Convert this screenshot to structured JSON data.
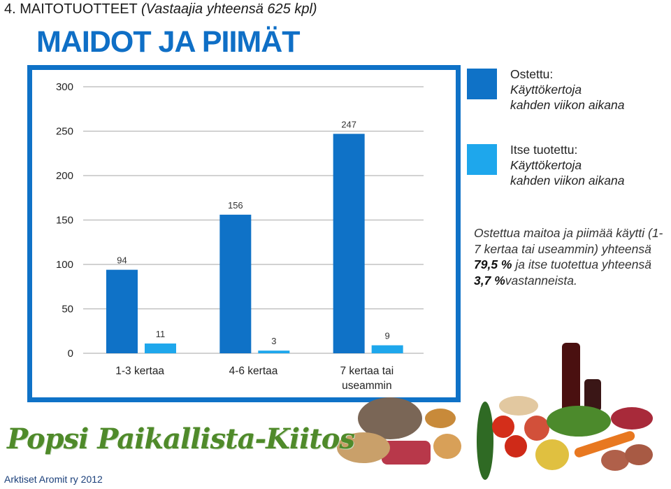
{
  "heading": {
    "main": "4. MAITOTUOTTEET",
    "sub": "(Vastaajia yhteensä 625 kpl)"
  },
  "title": "MAIDOT JA PIIMÄT",
  "legend": [
    {
      "line1": "Ostettu:",
      "line2": "Käyttökertoja",
      "line3": "kahden viikon aikana",
      "color": "#0f72c7"
    },
    {
      "line1": "Itse tuotettu:",
      "line2": "Käyttökertoja",
      "line3": "kahden viikon aikana",
      "color": "#1ea7ec"
    }
  ],
  "summary": {
    "part1": "Ostettua maitoa ja piimää käytti (1-7 kertaa tai useammin) yhteensä",
    "value1": "79,5 %",
    "part2": "ja itse tuotettua yhteensä",
    "value2": "3,7 %",
    "part3": "vastanneista."
  },
  "chart_data": {
    "type": "bar",
    "categories": [
      "1-3 kertaa",
      "4-6 kertaa",
      "7 kertaa tai useammin"
    ],
    "series": [
      {
        "name": "Ostettu: Käyttökertoja kahden viikon aikana",
        "values": [
          94,
          156,
          247
        ],
        "color": "#0f72c7"
      },
      {
        "name": "Itse tuotettu: Käyttökertoja kahden viikon aikana",
        "values": [
          11,
          3,
          9
        ],
        "color": "#1ea7ec"
      }
    ],
    "ylim": [
      0,
      300
    ],
    "yticks": [
      0,
      50,
      100,
      150,
      200,
      250,
      300
    ],
    "grid": true,
    "legend": "right"
  },
  "logo": "Popsi Paikallista-Kiitos",
  "footer": "Arktiset Aromit ry 2012"
}
